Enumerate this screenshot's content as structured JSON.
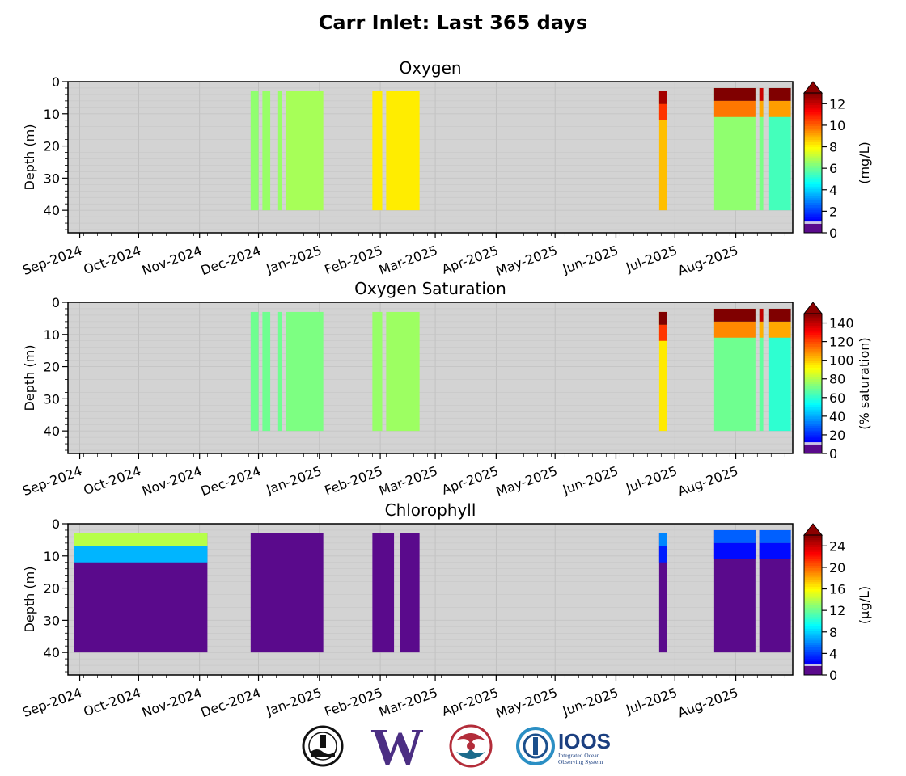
{
  "title": "Carr Inlet: Last 365 days",
  "x_ticks": [
    "Sep-2024",
    "Oct-2024",
    "Nov-2024",
    "Dec-2024",
    "Jan-2025",
    "Feb-2025",
    "Mar-2025",
    "Apr-2025",
    "May-2025",
    "Jun-2025",
    "Jul-2025",
    "Aug-2025"
  ],
  "logos": {
    "ioos_name": "IOOS",
    "ioos_sub1": "Integrated Ocean",
    "ioos_sub2": "Observing System",
    "uw_letter": "W"
  },
  "chart_data": [
    {
      "type": "heatmap",
      "title": "Oxygen",
      "ylabel": "Depth (m)",
      "y_ticks": [
        0,
        10,
        20,
        30,
        40
      ],
      "ylim": [
        0,
        47
      ],
      "y_inverted": true,
      "colorbar": {
        "label": "(mg/L)",
        "ticks": [
          0,
          2,
          4,
          6,
          8,
          10,
          12
        ],
        "range": [
          0,
          13
        ],
        "colormap": "jet-with-low-purple",
        "extend": "max"
      },
      "profiles": [
        {
          "start": "2024-11-27",
          "end": "2024-12-01",
          "depth": [
            3,
            40
          ],
          "value": 6.5
        },
        {
          "start": "2024-12-03",
          "end": "2024-12-07",
          "depth": [
            3,
            40
          ],
          "value": 6.6
        },
        {
          "start": "2024-12-11",
          "end": "2024-12-13",
          "depth": [
            3,
            40
          ],
          "value": 6.6
        },
        {
          "start": "2024-12-15",
          "end": "2025-01-03",
          "depth": [
            3,
            40
          ],
          "value": 6.8
        },
        {
          "start": "2025-01-28",
          "end": "2025-02-02",
          "depth": [
            3,
            40
          ],
          "value": 8.2
        },
        {
          "start": "2025-02-04",
          "end": "2025-02-21",
          "depth": [
            3,
            40
          ],
          "value": 8.2
        },
        {
          "start": "2025-06-23",
          "end": "2025-06-27",
          "depth": [
            3,
            40
          ],
          "value": 8.8,
          "surface_value": 12.5
        },
        {
          "start": "2025-07-21",
          "end": "2025-08-11",
          "depth": [
            2,
            40
          ],
          "value": 6.5,
          "surface_value": 13
        },
        {
          "start": "2025-08-13",
          "end": "2025-08-15",
          "depth": [
            2,
            40
          ],
          "value": 6.2,
          "surface_value": 12
        },
        {
          "start": "2025-08-18",
          "end": "2025-08-29",
          "depth": [
            2,
            40
          ],
          "value": 5.5,
          "surface_value": 13
        }
      ]
    },
    {
      "type": "heatmap",
      "title": "Oxygen Saturation",
      "ylabel": "Depth (m)",
      "y_ticks": [
        0,
        10,
        20,
        30,
        40
      ],
      "ylim": [
        0,
        47
      ],
      "y_inverted": true,
      "colorbar": {
        "label": "(% saturation)",
        "ticks": [
          0,
          20,
          40,
          60,
          80,
          100,
          120,
          140
        ],
        "range": [
          0,
          150
        ],
        "colormap": "jet-with-low-purple",
        "extend": "max"
      },
      "profiles": [
        {
          "start": "2024-11-27",
          "end": "2024-12-01",
          "depth": [
            3,
            40
          ],
          "value": 70
        },
        {
          "start": "2024-12-03",
          "end": "2024-12-07",
          "depth": [
            3,
            40
          ],
          "value": 70
        },
        {
          "start": "2024-12-11",
          "end": "2024-12-13",
          "depth": [
            3,
            40
          ],
          "value": 70
        },
        {
          "start": "2024-12-15",
          "end": "2025-01-03",
          "depth": [
            3,
            40
          ],
          "value": 72
        },
        {
          "start": "2025-01-28",
          "end": "2025-02-02",
          "depth": [
            3,
            40
          ],
          "value": 76
        },
        {
          "start": "2025-02-04",
          "end": "2025-02-21",
          "depth": [
            3,
            40
          ],
          "value": 77
        },
        {
          "start": "2025-06-23",
          "end": "2025-06-27",
          "depth": [
            3,
            40
          ],
          "value": 95,
          "surface_value": 150
        },
        {
          "start": "2025-07-21",
          "end": "2025-08-11",
          "depth": [
            2,
            40
          ],
          "value": 70,
          "surface_value": 150
        },
        {
          "start": "2025-08-13",
          "end": "2025-08-15",
          "depth": [
            2,
            40
          ],
          "value": 68,
          "surface_value": 140
        },
        {
          "start": "2025-08-18",
          "end": "2025-08-29",
          "depth": [
            2,
            40
          ],
          "value": 60,
          "surface_value": 150
        }
      ]
    },
    {
      "type": "heatmap",
      "title": "Chlorophyll",
      "ylabel": "Depth (m)",
      "y_ticks": [
        0,
        10,
        20,
        30,
        40
      ],
      "ylim": [
        0,
        47
      ],
      "y_inverted": true,
      "colorbar": {
        "label": "(μg/L)",
        "ticks": [
          0,
          4,
          8,
          12,
          16,
          20,
          24
        ],
        "range": [
          0,
          26
        ],
        "colormap": "jet-with-low-purple",
        "extend": "max"
      },
      "profiles": [
        {
          "start": "2024-08-29",
          "end": "2024-11-05",
          "depth": [
            3,
            40
          ],
          "value": 0.5,
          "surface_value": 14
        },
        {
          "start": "2024-11-27",
          "end": "2025-01-03",
          "depth": [
            3,
            40
          ],
          "value": 1.0
        },
        {
          "start": "2025-01-28",
          "end": "2025-02-08",
          "depth": [
            3,
            40
          ],
          "value": 1.0
        },
        {
          "start": "2025-02-11",
          "end": "2025-02-21",
          "depth": [
            3,
            40
          ],
          "value": 1.0
        },
        {
          "start": "2025-06-23",
          "end": "2025-06-27",
          "depth": [
            3,
            40
          ],
          "value": 0.5,
          "surface_value": 6
        },
        {
          "start": "2025-07-21",
          "end": "2025-08-11",
          "depth": [
            2,
            40
          ],
          "value": 0.5,
          "surface_value": 5
        },
        {
          "start": "2025-08-13",
          "end": "2025-08-29",
          "depth": [
            2,
            40
          ],
          "value": 0.5,
          "surface_value": 5
        }
      ]
    }
  ]
}
